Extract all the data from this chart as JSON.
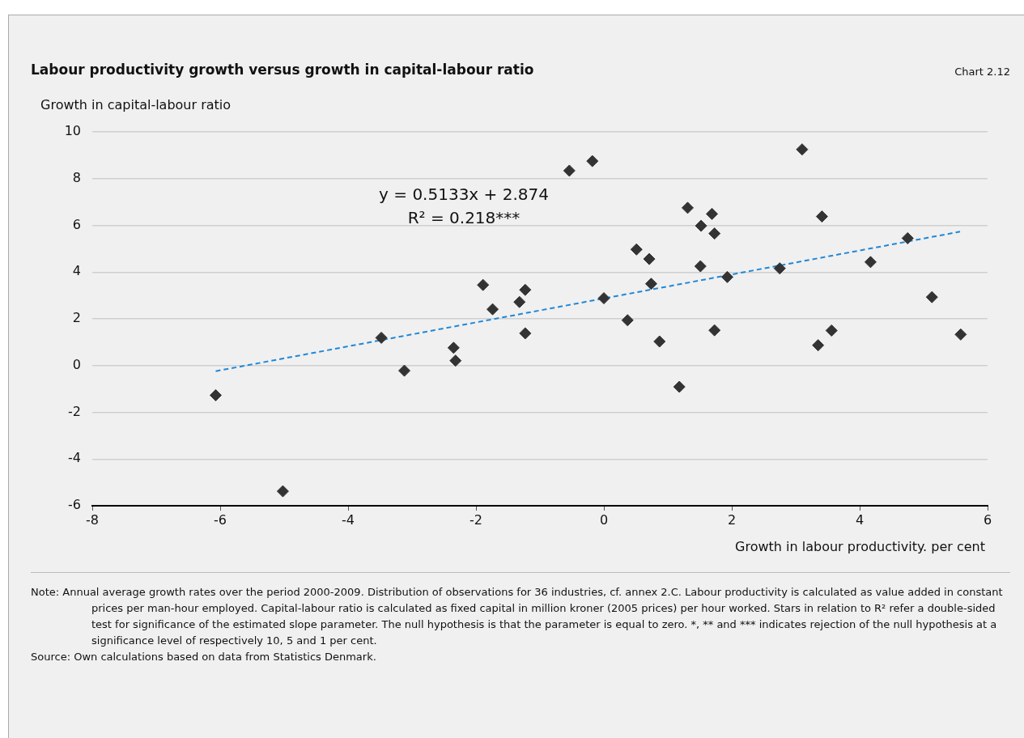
{
  "chart_data": {
    "type": "scatter",
    "title": "Labour productivity growth versus growth in capital-labour ratio",
    "xlabel": "Growth in labour productivity. per cent",
    "ylabel": "Growth in capital-labour ratio",
    "series": [
      {
        "color": "#333333",
        "marker": "diamond",
        "x": [
          -6.07,
          -5.02,
          -3.48,
          -3.12,
          -2.35,
          -2.32,
          -1.89,
          -1.74,
          -1.32,
          -1.23,
          -1.23,
          -0.54,
          -0.18,
          0.0,
          0.37,
          0.51,
          0.71,
          0.74,
          0.87,
          1.18,
          1.31,
          1.52,
          1.69,
          1.73,
          1.51,
          1.73,
          1.93,
          2.75,
          3.1,
          3.41,
          3.35,
          3.56,
          4.17,
          4.75,
          5.13,
          5.58
        ],
        "values": [
          -1.27,
          -5.38,
          1.19,
          -0.22,
          0.76,
          0.21,
          3.45,
          2.41,
          2.72,
          3.24,
          1.38,
          8.34,
          8.75,
          2.88,
          1.94,
          4.97,
          4.56,
          3.5,
          1.03,
          -0.91,
          6.75,
          5.98,
          6.49,
          5.65,
          4.25,
          1.51,
          3.79,
          4.16,
          9.25,
          6.38,
          0.87,
          1.5,
          4.43,
          5.45,
          2.93,
          1.33
        ]
      },
      {
        "type": "line",
        "color": "#1f88d8",
        "line_style": "dashed",
        "marker": "none",
        "x": [
          -6.07,
          5.57
        ],
        "values": [
          -0.24,
          5.73
        ]
      }
    ],
    "xlim": [
      -8,
      6
    ],
    "xticks": [
      -8,
      -6,
      -4,
      -2,
      0,
      2,
      4,
      6
    ],
    "ylim": [
      -6,
      10
    ],
    "yticks": [
      -6,
      -4,
      -2,
      0,
      2,
      4,
      6,
      8,
      10
    ],
    "grid": "y",
    "legend": false,
    "annotations": [
      "y = 0.5133x + 2.874",
      "R² = 0.218***",
      "Chart 2.12",
      "Note: Annual average growth rates over the period 2000-2009. Distribution of observations for 36 industries, cf. annex 2.C. Labour productivity is calculated as value added in constant prices per man-hour employed. Capital-labour ratio is calculated as fixed capital in million kroner (2005 prices) per hour worked. Stars in relation to R² refer a double-sided test for significance of the estimated slope parameter. The null hypothesis is that the parameter is equal to zero. *, ** and *** indicates rejection of the null hypothesis at a significance level of respectively 10, 5 and 1 per cent.",
      "Source: Own calculations based on data from Statistics Denmark."
    ]
  }
}
